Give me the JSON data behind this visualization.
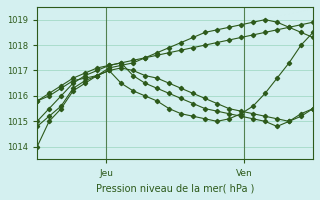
{
  "title": "",
  "xlabel": "Pression niveau de la mer( hPa )",
  "ylabel": "",
  "bg_color": "#d4f0f0",
  "line_color": "#2d5a1b",
  "grid_color": "#aaddcc",
  "ylim": [
    1013.5,
    1019.5
  ],
  "xlim": [
    0,
    48
  ],
  "jeu_x": 12,
  "ven_x": 36,
  "series": [
    [
      1014.0,
      1015.0,
      1015.5,
      1016.2,
      1016.5,
      1016.8,
      1017.1,
      1017.2,
      1017.3,
      1017.5,
      1017.7,
      1017.9,
      1018.1,
      1018.3,
      1018.5,
      1018.6,
      1018.7,
      1018.8,
      1018.9,
      1019.0,
      1018.9,
      1018.7,
      1018.5,
      1018.3
    ],
    [
      1014.8,
      1015.2,
      1015.6,
      1016.3,
      1016.6,
      1016.8,
      1017.0,
      1016.5,
      1016.2,
      1016.0,
      1015.8,
      1015.5,
      1015.3,
      1015.2,
      1015.1,
      1015.0,
      1015.1,
      1015.3,
      1015.6,
      1016.1,
      1016.7,
      1017.3,
      1018.0,
      1018.5
    ],
    [
      1015.0,
      1015.5,
      1016.0,
      1016.5,
      1016.8,
      1017.0,
      1017.2,
      1017.3,
      1016.8,
      1016.5,
      1016.3,
      1016.1,
      1015.9,
      1015.7,
      1015.5,
      1015.4,
      1015.3,
      1015.2,
      1015.1,
      1015.0,
      1014.8,
      1015.0,
      1015.3,
      1015.5
    ],
    [
      1015.8,
      1016.0,
      1016.3,
      1016.6,
      1016.7,
      1016.8,
      1017.0,
      1017.1,
      1017.0,
      1016.8,
      1016.7,
      1016.5,
      1016.3,
      1016.1,
      1015.9,
      1015.7,
      1015.5,
      1015.4,
      1015.3,
      1015.2,
      1015.1,
      1015.0,
      1015.2,
      1015.5
    ],
    [
      1015.8,
      1016.1,
      1016.4,
      1016.7,
      1016.9,
      1017.1,
      1017.2,
      1017.3,
      1017.4,
      1017.5,
      1017.6,
      1017.7,
      1017.8,
      1017.9,
      1018.0,
      1018.1,
      1018.2,
      1018.3,
      1018.4,
      1018.5,
      1018.6,
      1018.7,
      1018.8,
      1018.9
    ]
  ],
  "x_ticks": [
    12,
    36
  ],
  "x_tick_labels": [
    "Jeu",
    "Ven"
  ]
}
